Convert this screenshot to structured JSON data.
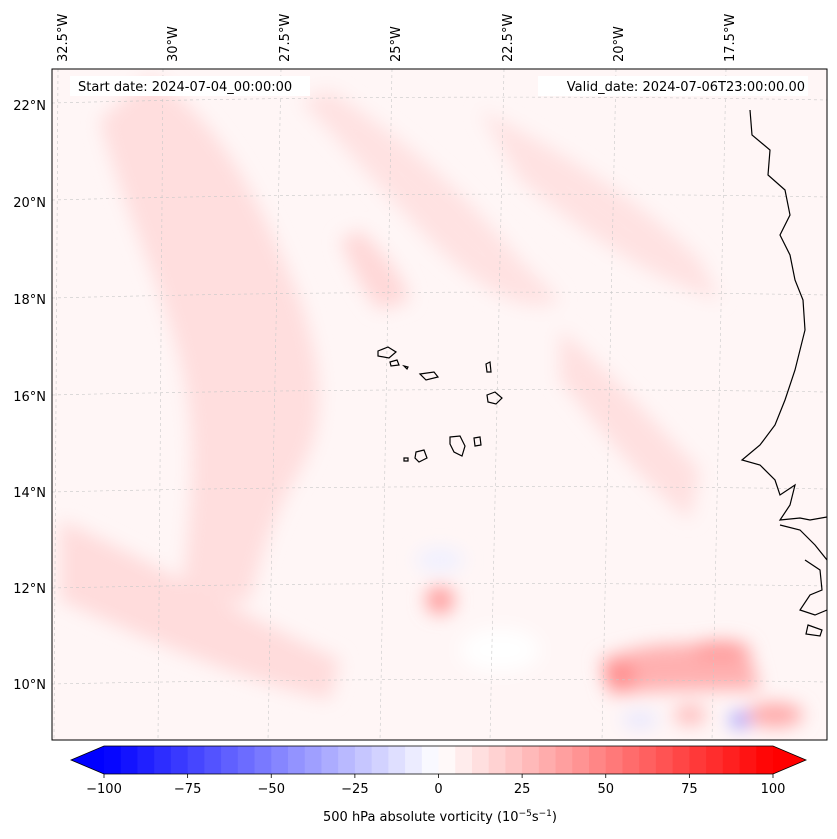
{
  "map": {
    "start_date_label": "Start date: 2024-07-04_00:00:00",
    "valid_date_label": "Valid_date: 2024-07-06T23:00:00.00",
    "lon_ticks": [
      "32.5°W",
      "30°W",
      "27.5°W",
      "25°W",
      "22.5°W",
      "20°W",
      "17.5°W"
    ],
    "lat_ticks": [
      "22°N",
      "20°N",
      "18°N",
      "16°N",
      "14°N",
      "12°N",
      "10°N"
    ],
    "background_color": "#fff6f6",
    "coast_color": "#000000"
  },
  "colorbar": {
    "min": -100,
    "max": 100,
    "tick_values": [
      -100,
      -75,
      -50,
      -25,
      0,
      25,
      50,
      75,
      100
    ],
    "tick_labels": [
      "−100",
      "−75",
      "−50",
      "−25",
      "0",
      "25",
      "50",
      "75",
      "100"
    ],
    "colors": {
      "low": "#0000ff",
      "mid": "#ffffff",
      "high": "#ff0000"
    },
    "label_main": "500 hPa absolute vorticity (10",
    "label_exp1": "−5",
    "label_unit": "s",
    "label_exp2": "−1",
    "label_end": ")"
  }
}
